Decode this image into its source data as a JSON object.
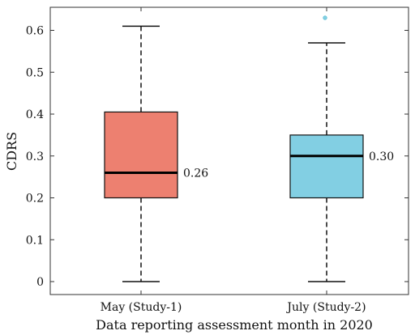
{
  "chart_data": {
    "type": "box",
    "title": "",
    "xlabel": "Data reporting assessment month in 2020",
    "ylabel": "CDRS",
    "ylim": [
      -0.03,
      0.655
    ],
    "yticks": [
      0,
      0.1,
      0.2,
      0.3,
      0.4,
      0.5,
      0.6
    ],
    "ytick_labels": [
      "0",
      "0.1",
      "0.2",
      "0.3",
      "0.4",
      "0.5",
      "0.6"
    ],
    "grid": false,
    "categories": [
      "May (Study-1)",
      "July (Study-2)"
    ],
    "boxes": [
      {
        "category": "May (Study-1)",
        "whisker_low": 0,
        "q1": 0.2,
        "median": 0.26,
        "q3": 0.405,
        "whisker_high": 0.61,
        "outliers": [],
        "median_label": "0.26",
        "color": "#ED8070"
      },
      {
        "category": "July (Study-2)",
        "whisker_low": 0,
        "q1": 0.2,
        "median": 0.3,
        "q3": 0.35,
        "whisker_high": 0.57,
        "outliers": [
          0.63
        ],
        "median_label": "0.30",
        "color": "#82CFE3"
      }
    ]
  }
}
